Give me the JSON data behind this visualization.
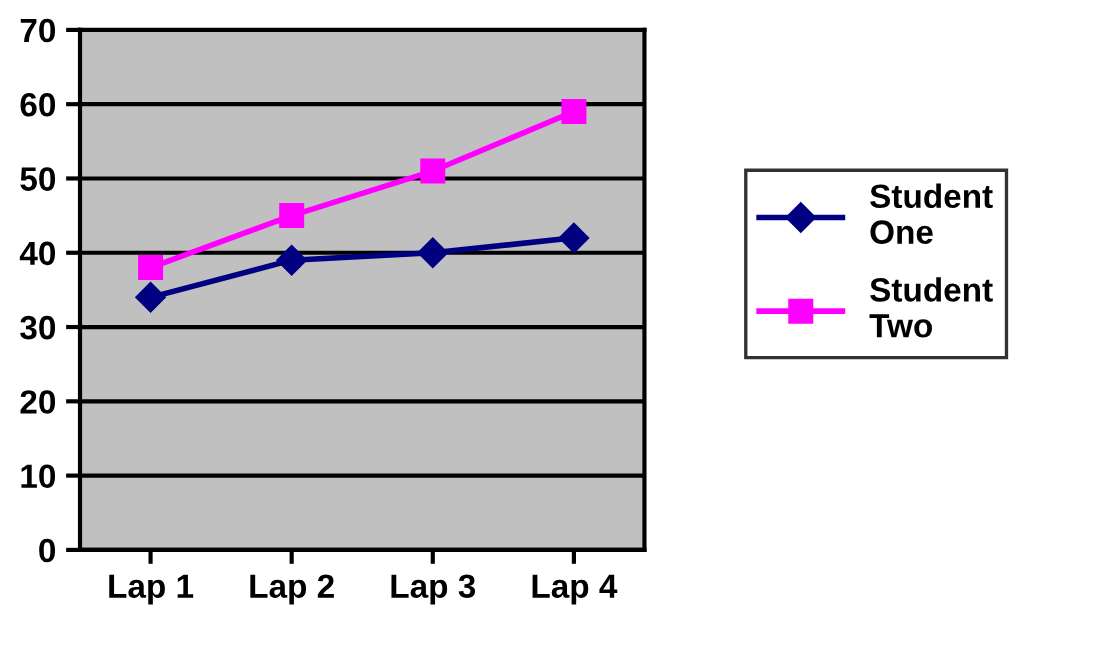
{
  "chart_data": {
    "type": "line",
    "categories": [
      "Lap 1",
      "Lap 2",
      "Lap 3",
      "Lap 4"
    ],
    "series": [
      {
        "name": "Student One",
        "color": "#000080",
        "marker": "diamond",
        "values": [
          34,
          39,
          40,
          42
        ]
      },
      {
        "name": "Student Two",
        "color": "#ff00ff",
        "marker": "square",
        "values": [
          38,
          45,
          51,
          59
        ]
      }
    ],
    "ylim": [
      0,
      70
    ],
    "yticks": [
      0,
      10,
      20,
      30,
      40,
      50,
      60,
      70
    ],
    "grid": "y",
    "legend": "right",
    "line_style": "solid"
  }
}
